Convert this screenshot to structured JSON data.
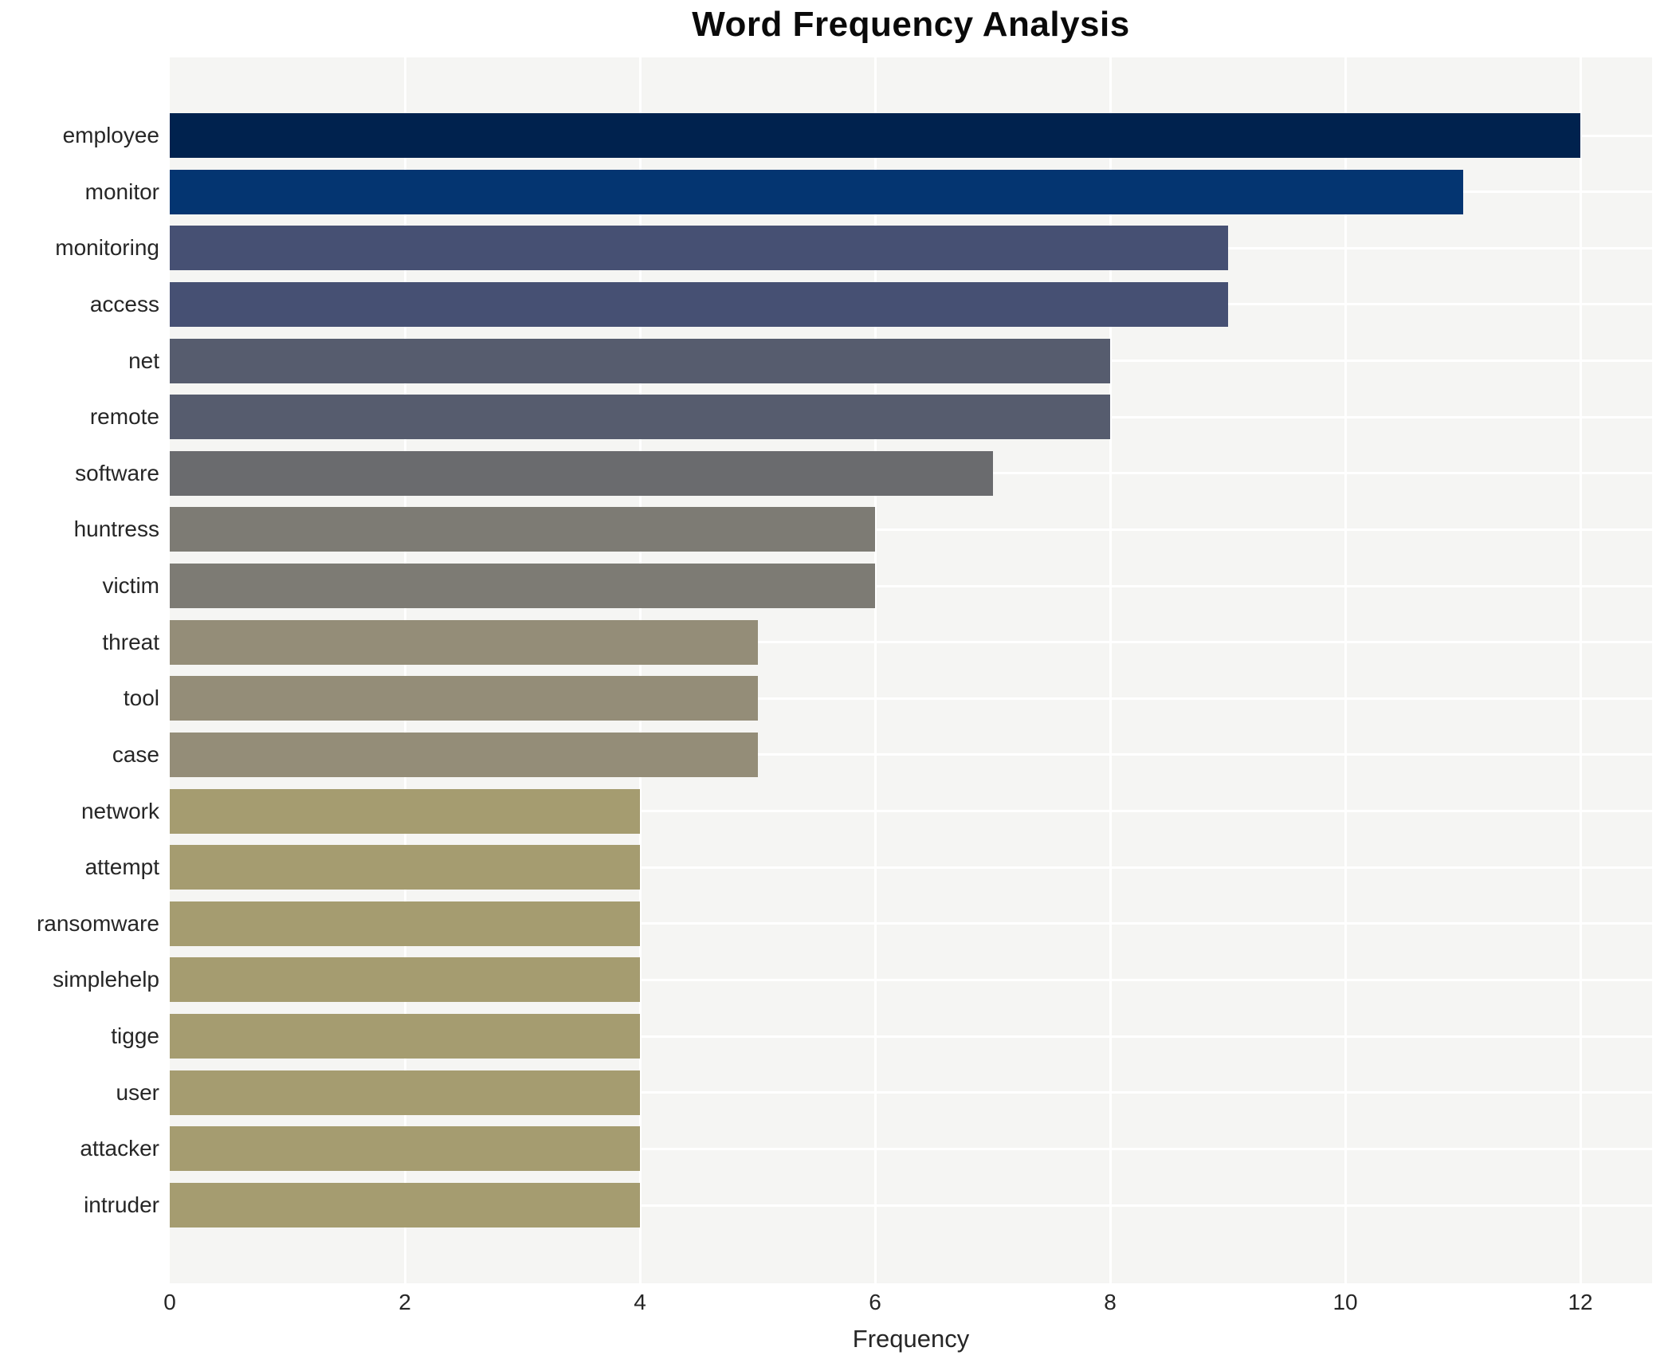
{
  "chart_data": {
    "type": "bar",
    "orientation": "horizontal",
    "title": "Word Frequency Analysis",
    "xlabel": "Frequency",
    "ylabel": "",
    "categories": [
      "employee",
      "monitor",
      "monitoring",
      "access",
      "net",
      "remote",
      "software",
      "huntress",
      "victim",
      "threat",
      "tool",
      "case",
      "network",
      "attempt",
      "ransomware",
      "simplehelp",
      "tigge",
      "user",
      "attacker",
      "intruder"
    ],
    "values": [
      12,
      11,
      9,
      9,
      8,
      8,
      7,
      6,
      6,
      5,
      5,
      5,
      4,
      4,
      4,
      4,
      4,
      4,
      4,
      4
    ],
    "bar_colors": [
      "#00224e",
      "#043571",
      "#465073",
      "#465073",
      "#565c6e",
      "#565c6e",
      "#6a6b6e",
      "#7d7b74",
      "#7d7b74",
      "#948d78",
      "#948d78",
      "#948d78",
      "#a59c70",
      "#a59c70",
      "#a59c70",
      "#a59c70",
      "#a59c70",
      "#a59c70",
      "#a59c70",
      "#a59c70"
    ],
    "xlim": [
      0,
      12.61
    ],
    "xticks": [
      0,
      2,
      4,
      6,
      8,
      10,
      12
    ],
    "grid": true,
    "legend_position": "none",
    "plot_background": "#f5f5f3",
    "grid_color": "#ffffff",
    "text_color": "#262626",
    "title_color": "#0a0a0a"
  }
}
